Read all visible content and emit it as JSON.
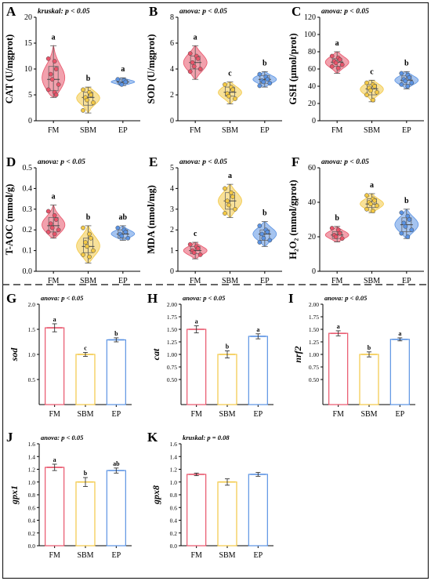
{
  "colors": {
    "FM": "#e8546a",
    "SBM": "#f3c845",
    "EP": "#5b93e3",
    "frame": "#222222",
    "dash": "#333333"
  },
  "groups": [
    "FM",
    "SBM",
    "EP"
  ],
  "panels": [
    {
      "letter": "A",
      "stat": "kruskal: p < 0.05",
      "ylabel": "CAT (U/mgprot)",
      "type": "violin",
      "ylim": [
        0,
        20
      ],
      "yticks": [
        "0",
        "5",
        "10",
        "15",
        "20"
      ],
      "sig": [
        "a",
        "b",
        "a"
      ]
    },
    {
      "letter": "B",
      "stat": "anova: p < 0.05",
      "ylabel": "SOD (U/mgprot)",
      "type": "violin",
      "ylim": [
        0,
        8
      ],
      "yticks": [
        "0",
        "2",
        "4",
        "6",
        "8"
      ],
      "sig": [
        "a",
        "c",
        "b"
      ]
    },
    {
      "letter": "C",
      "stat": "anova: p < 0.05",
      "ylabel": "GSH (μmol/prot)",
      "type": "violin",
      "ylim": [
        0,
        120
      ],
      "yticks": [
        "0",
        "20",
        "40",
        "60",
        "80",
        "100",
        "120"
      ],
      "sig": [
        "a",
        "c",
        "b"
      ]
    },
    {
      "letter": "D",
      "stat": "anova: p < 0.05",
      "ylabel": "T-AOC (mmol/g)",
      "type": "violin",
      "ylim": [
        0,
        0.5
      ],
      "yticks": [
        "0.0",
        "0.1",
        "0.2",
        "0.3",
        "0.4",
        "0.5"
      ],
      "sig": [
        "a",
        "b",
        "ab"
      ]
    },
    {
      "letter": "E",
      "stat": "anova: p < 0.05",
      "ylabel": "MDA (nmol/mg)",
      "type": "violin",
      "ylim": [
        0,
        5
      ],
      "yticks": [
        "0",
        "1",
        "2",
        "3",
        "4",
        "5"
      ],
      "sig": [
        "c",
        "a",
        "b"
      ]
    },
    {
      "letter": "F",
      "stat": "anova: p < 0.05",
      "ylabel": "H₂O₂ (mmol/gprot)",
      "type": "violin",
      "ylim": [
        0,
        60
      ],
      "yticks": [
        "0",
        "20",
        "40",
        "60"
      ],
      "sig": [
        "b",
        "a",
        "b"
      ]
    },
    {
      "letter": "G",
      "stat": "anova: p < 0.05",
      "ylabel": "sod",
      "type": "bar",
      "ylim": [
        0,
        2.0
      ],
      "yticks": [
        "0.5",
        "1.0",
        "1.5",
        "2.0"
      ],
      "sig": [
        "a",
        "c",
        "b"
      ]
    },
    {
      "letter": "H",
      "stat": "anova: p < 0.05",
      "ylabel": "cat",
      "type": "bar",
      "ylim": [
        0,
        2.0
      ],
      "yticks": [
        "0.50",
        "0.75",
        "1.00",
        "1.25",
        "1.50",
        "1.75",
        "2.00"
      ],
      "sig": [
        "a",
        "b",
        "a"
      ]
    },
    {
      "letter": "I",
      "stat": "anova: p < 0.05",
      "ylabel": "nrf2",
      "type": "bar",
      "ylim": [
        0,
        2.0
      ],
      "yticks": [
        "0.50",
        "0.75",
        "1.00",
        "1.25",
        "1.50",
        "1.75",
        "2.00"
      ],
      "sig": [
        "a",
        "b",
        "a"
      ]
    },
    {
      "letter": "J",
      "stat": "anova: p < 0.05",
      "ylabel": "gpx1",
      "type": "bar",
      "ylim": [
        0,
        1.6
      ],
      "yticks": [
        "0.0",
        "0.2",
        "0.4",
        "0.6",
        "0.8",
        "1.0",
        "1.2",
        "1.4",
        "1.6"
      ],
      "sig": [
        "a",
        "b",
        "ab"
      ]
    },
    {
      "letter": "K",
      "stat": "kruskal: p = 0.08",
      "ylabel": "gpx8",
      "type": "bar",
      "ylim": [
        0,
        1.6
      ],
      "yticks": [
        "0.0",
        "0.2",
        "0.4",
        "0.6",
        "0.8",
        "1.0",
        "1.2",
        "1.4",
        "1.6"
      ],
      "sig": [
        "",
        "",
        ""
      ]
    }
  ],
  "chart_data": [
    {
      "panel": "A",
      "type": "violin",
      "title": "kruskal: p < 0.05",
      "ylabel": "CAT (U/mgprot)",
      "categories": [
        "FM",
        "SBM",
        "EP"
      ],
      "ylim": [
        0,
        20
      ],
      "points": [
        [
          12,
          11.5,
          10,
          9,
          8,
          7,
          6,
          5.5,
          5
        ],
        [
          6,
          5.5,
          5,
          4.5,
          4,
          3.5,
          2
        ],
        [
          8,
          7.8,
          7.5,
          7.2,
          7
        ]
      ],
      "median": [
        8,
        4.5,
        7.5
      ],
      "q1": [
        5.8,
        3,
        7.2
      ],
      "q3": [
        10.5,
        5.5,
        7.9
      ],
      "min": [
        4.5,
        1.5,
        6.8
      ],
      "max": [
        14.5,
        6.5,
        8.3
      ],
      "sig": [
        "a",
        "b",
        "a"
      ]
    },
    {
      "panel": "B",
      "type": "violin",
      "title": "anova: p < 0.05",
      "ylabel": "SOD (U/mgprot)",
      "categories": [
        "FM",
        "SBM",
        "EP"
      ],
      "ylim": [
        0,
        8
      ],
      "points": [
        [
          5.2,
          5,
          4.8,
          4.5,
          4.2,
          4,
          3.8
        ],
        [
          2.8,
          2.6,
          2.4,
          2.1,
          1.9,
          1.7
        ],
        [
          3.6,
          3.4,
          3.2,
          3.1,
          3.0,
          2.9,
          2.7
        ]
      ],
      "median": [
        4.5,
        2.2,
        3.2
      ],
      "q1": [
        4,
        1.9,
        2.9
      ],
      "q3": [
        5,
        2.6,
        3.5
      ],
      "min": [
        3.2,
        1.3,
        2.6
      ],
      "max": [
        5.8,
        3.0,
        3.8
      ],
      "sig": [
        "a",
        "c",
        "b"
      ]
    },
    {
      "panel": "C",
      "type": "violin",
      "title": "anova: p < 0.05",
      "ylabel": "GSH (μmol/prot)",
      "categories": [
        "FM",
        "SBM",
        "EP"
      ],
      "ylim": [
        0,
        120
      ],
      "points": [
        [
          75,
          73,
          71,
          69,
          67,
          65,
          63,
          61
        ],
        [
          44,
          42,
          40,
          38,
          35,
          33,
          30,
          24
        ],
        [
          55,
          53,
          50,
          48,
          46,
          44,
          42,
          40
        ]
      ],
      "median": [
        68,
        37,
        47
      ],
      "q1": [
        63,
        30,
        42
      ],
      "q3": [
        72,
        42,
        52
      ],
      "min": [
        55,
        22,
        37
      ],
      "max": [
        80,
        47,
        57
      ],
      "sig": [
        "a",
        "c",
        "b"
      ]
    },
    {
      "panel": "D",
      "type": "violin",
      "title": "anova: p < 0.05",
      "ylabel": "T-AOC (mmol/g)",
      "categories": [
        "FM",
        "SBM",
        "EP"
      ],
      "ylim": [
        0,
        0.5
      ],
      "points": [
        [
          0.29,
          0.27,
          0.25,
          0.23,
          0.21,
          0.2,
          0.19,
          0.18
        ],
        [
          0.21,
          0.18,
          0.16,
          0.14,
          0.12,
          0.1,
          0.08,
          0.07
        ],
        [
          0.21,
          0.2,
          0.19,
          0.18,
          0.17,
          0.16
        ]
      ],
      "median": [
        0.22,
        0.12,
        0.18
      ],
      "q1": [
        0.19,
        0.09,
        0.16
      ],
      "q3": [
        0.26,
        0.16,
        0.2
      ],
      "min": [
        0.16,
        0.04,
        0.15
      ],
      "max": [
        0.32,
        0.22,
        0.22
      ],
      "sig": [
        "a",
        "b",
        "ab"
      ]
    },
    {
      "panel": "E",
      "type": "violin",
      "title": "anova: p < 0.05",
      "ylabel": "MDA (nmol/mg)",
      "categories": [
        "FM",
        "SBM",
        "EP"
      ],
      "ylim": [
        0,
        5
      ],
      "points": [
        [
          1.3,
          1.2,
          1.1,
          1.0,
          0.9,
          0.8
        ],
        [
          4.0,
          3.8,
          3.6,
          3.4,
          3.2,
          3.0,
          2.8
        ],
        [
          2.2,
          2.0,
          1.9,
          1.8,
          1.6,
          1.5,
          1.4
        ]
      ],
      "median": [
        1.0,
        3.4,
        1.8
      ],
      "q1": [
        0.85,
        3.0,
        1.5
      ],
      "q3": [
        1.2,
        3.8,
        2.0
      ],
      "min": [
        0.6,
        2.6,
        1.2
      ],
      "max": [
        1.4,
        4.2,
        2.4
      ],
      "sig": [
        "c",
        "a",
        "b"
      ]
    },
    {
      "panel": "F",
      "type": "violin",
      "title": "anova: p < 0.05",
      "ylabel": "H₂O₂ (mmol/gprot)",
      "categories": [
        "FM",
        "SBM",
        "EP"
      ],
      "ylim": [
        0,
        60
      ],
      "points": [
        [
          25,
          24,
          22,
          21,
          20,
          19
        ],
        [
          44,
          42,
          41,
          40,
          39,
          38,
          36,
          35
        ],
        [
          34,
          32,
          30,
          28,
          26,
          24,
          22,
          20
        ]
      ],
      "median": [
        21,
        39,
        27
      ],
      "q1": [
        19,
        37,
        23
      ],
      "q3": [
        23,
        42,
        31
      ],
      "min": [
        17,
        34,
        19
      ],
      "max": [
        26,
        45,
        36
      ],
      "sig": [
        "b",
        "a",
        "b"
      ]
    },
    {
      "panel": "G",
      "type": "bar",
      "title": "anova: p < 0.05",
      "ylabel": "sod",
      "categories": [
        "FM",
        "SBM",
        "EP"
      ],
      "ylim": [
        0,
        2.0
      ],
      "values": [
        1.53,
        1.0,
        1.29
      ],
      "errors": [
        0.08,
        0.04,
        0.04
      ],
      "sig": [
        "a",
        "c",
        "b"
      ]
    },
    {
      "panel": "H",
      "type": "bar",
      "title": "anova: p < 0.05",
      "ylabel": "cat",
      "categories": [
        "FM",
        "SBM",
        "EP"
      ],
      "ylim": [
        0,
        2.0
      ],
      "values": [
        1.5,
        1.0,
        1.36
      ],
      "errors": [
        0.07,
        0.07,
        0.05
      ],
      "sig": [
        "a",
        "b",
        "a"
      ]
    },
    {
      "panel": "I",
      "type": "bar",
      "title": "anova: p < 0.05",
      "ylabel": "nrf2",
      "categories": [
        "FM",
        "SBM",
        "EP"
      ],
      "ylim": [
        0,
        2.0
      ],
      "values": [
        1.42,
        1.0,
        1.3
      ],
      "errors": [
        0.05,
        0.05,
        0.03
      ],
      "sig": [
        "a",
        "b",
        "a"
      ]
    },
    {
      "panel": "J",
      "type": "bar",
      "title": "anova: p < 0.05",
      "ylabel": "gpx1",
      "categories": [
        "FM",
        "SBM",
        "EP"
      ],
      "ylim": [
        0,
        1.6
      ],
      "values": [
        1.23,
        1.0,
        1.18
      ],
      "errors": [
        0.05,
        0.07,
        0.04
      ],
      "sig": [
        "a",
        "b",
        "ab"
      ]
    },
    {
      "panel": "K",
      "type": "bar",
      "title": "kruskal: p = 0.08",
      "ylabel": "gpx8",
      "categories": [
        "FM",
        "SBM",
        "EP"
      ],
      "ylim": [
        0,
        1.6
      ],
      "values": [
        1.12,
        1.0,
        1.12
      ],
      "errors": [
        0.02,
        0.05,
        0.03
      ],
      "sig": [
        "",
        "",
        ""
      ]
    }
  ]
}
